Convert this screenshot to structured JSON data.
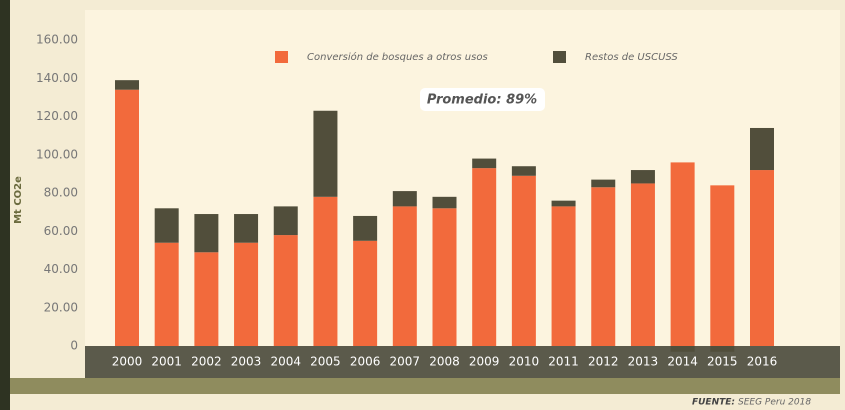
{
  "chart_data": {
    "type": "bar",
    "stacked": true,
    "y_label": "Mt CO2e",
    "annotation": "Promedio: 89%",
    "source_label": "FUENTE:",
    "source": "SEEG Peru 2018",
    "categories": [
      "2000",
      "2001",
      "2002",
      "2003",
      "2004",
      "2005",
      "2006",
      "2007",
      "2008",
      "2009",
      "2010",
      "2011",
      "2012",
      "2013",
      "2014",
      "2015",
      "2016"
    ],
    "series": [
      {
        "name": "Conversión de bosques a otros usos",
        "color": "#f26a3c",
        "values": [
          134,
          54,
          49,
          54,
          58,
          78,
          55,
          73,
          72,
          93,
          89,
          73,
          83,
          85,
          96,
          84,
          92
        ]
      },
      {
        "name": "Restos de USCUSS",
        "color": "#514e3b",
        "values": [
          5,
          18,
          20,
          15,
          15,
          45,
          13,
          8,
          6,
          5,
          5,
          3,
          4,
          7,
          -3,
          -3,
          22
        ]
      }
    ],
    "ylim": [
      0,
      160
    ],
    "yticks": [
      0,
      {
        "value": 20,
        "label": "20.00"
      },
      {
        "value": 40,
        "label": "40.00"
      },
      {
        "value": 60,
        "label": "60.00"
      },
      {
        "value": 80,
        "label": "80.00"
      },
      {
        "value": 100,
        "label": "100.00"
      },
      {
        "value": 120,
        "label": "120.00"
      },
      {
        "value": 140,
        "label": "140.00"
      },
      {
        "value": 160,
        "label": "160.00"
      }
    ]
  }
}
